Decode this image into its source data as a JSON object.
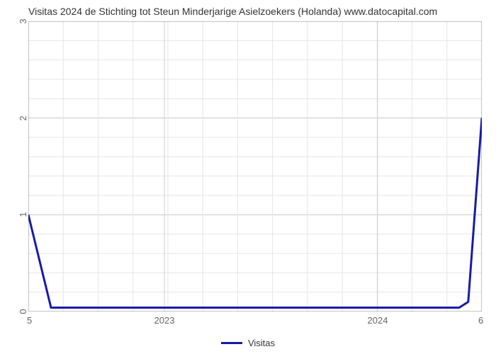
{
  "chart": {
    "type": "line",
    "title": "Visitas 2024 de Stichting tot Steun Minderjarige Asielzoekers (Holanda) www.datocapital.com",
    "title_fontsize": 14,
    "title_color": "#333333",
    "background_color": "#ffffff",
    "plot_border_color": "#888888",
    "plot_border_width": 1,
    "grid_major_color": "#cccccc",
    "grid_minor_color": "#e6e6e6",
    "grid_major_width": 1,
    "grid_minor_width": 1,
    "y_axis": {
      "min": 0,
      "max": 3,
      "major_ticks": [
        0,
        1,
        2,
        3
      ],
      "minor_step": 0.2,
      "label_fontsize": 13,
      "label_color": "#666666",
      "label_rotation": -90
    },
    "x_axis": {
      "corner_left": "5",
      "corner_right": "6",
      "year_labels": [
        "2023",
        "2024"
      ],
      "year_positions_pct": [
        30,
        77
      ],
      "minor_tick_count": 13,
      "label_fontsize": 13,
      "label_color": "#666666"
    },
    "series": {
      "name": "Visitas",
      "color": "#1919aa",
      "line_width": 3,
      "points_x_pct": [
        0,
        5,
        10,
        20,
        30,
        40,
        50,
        60,
        70,
        80,
        90,
        95,
        97,
        100
      ],
      "points_y_val": [
        1.0,
        0.04,
        0.04,
        0.04,
        0.04,
        0.04,
        0.04,
        0.04,
        0.04,
        0.04,
        0.04,
        0.04,
        0.1,
        2.0
      ]
    },
    "legend": {
      "label": "Visitas",
      "line_color": "#1919aa",
      "fontsize": 13
    }
  }
}
